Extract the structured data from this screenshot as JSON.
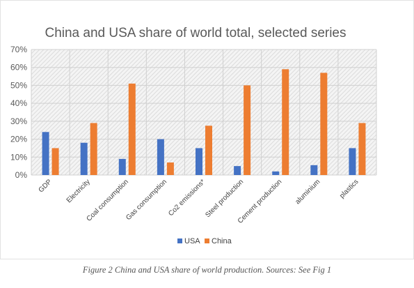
{
  "chart_data": {
    "type": "bar",
    "title": "China and USA share of world total, selected  series",
    "categories": [
      "GDP",
      "Electricity",
      "Coal consumption",
      "Gas consumption",
      "Co2 emissions*",
      "Steel production",
      "Cement production",
      "aluminium",
      "plastics"
    ],
    "series": [
      {
        "name": "USA",
        "color": "#4472c4",
        "values": [
          24,
          18,
          9,
          20,
          15,
          5,
          2,
          5.5,
          15
        ]
      },
      {
        "name": "China",
        "color": "#ed7d31",
        "values": [
          15,
          29,
          51,
          7,
          27.5,
          50,
          59,
          57,
          29
        ]
      }
    ],
    "yticks": [
      "0%",
      "10%",
      "20%",
      "30%",
      "40%",
      "50%",
      "60%",
      "70%"
    ],
    "ylim": [
      0,
      70
    ],
    "grid": true,
    "legend": "bottom"
  },
  "caption": "Figure 2 China and USA share of world production. Sources: See Fig 1"
}
